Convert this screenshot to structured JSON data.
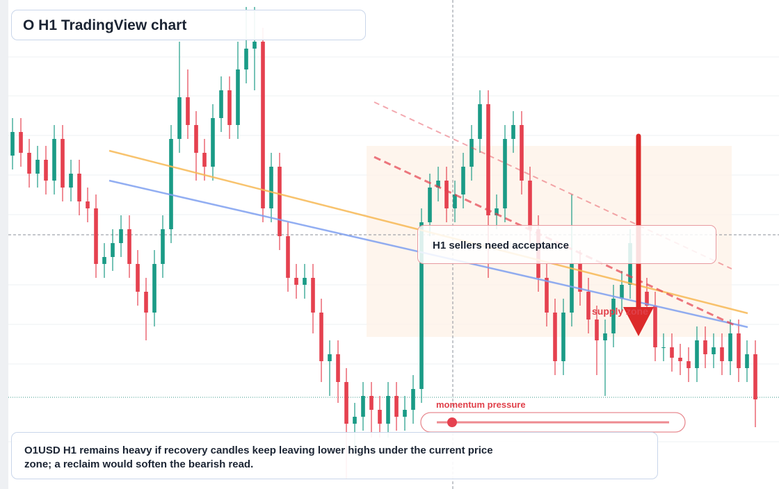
{
  "chart_data": {
    "type": "candlestick",
    "title": "O H1 TradingView chart",
    "annotations": [
      "H1 sellers need acceptance",
      "supply zone",
      "momentum pressure"
    ],
    "note": "O1USD H1 remains heavy if recovery candles keep leaving lower highs under the current price zone; a reclaim would soften the bearish read.",
    "up_color": "#1a9b86",
    "down_color": "#e5414f",
    "ylim": [
      0,
      70.4
    ],
    "categories": [
      null,
      null,
      null,
      null,
      null,
      null,
      null,
      null,
      null,
      null,
      null,
      null,
      null,
      null,
      null,
      null,
      null,
      null,
      null,
      null,
      null,
      null,
      null,
      null,
      null,
      null,
      null,
      null,
      null,
      null,
      null,
      null,
      null,
      null,
      null,
      null,
      null,
      null,
      null,
      null,
      null,
      null,
      null,
      null,
      null,
      null,
      null,
      null,
      null,
      null,
      null,
      null,
      null,
      null,
      null,
      null,
      null,
      null,
      null,
      null,
      null,
      null,
      null,
      null,
      null,
      null,
      null,
      null,
      null,
      null,
      null,
      null,
      null,
      null,
      null,
      null,
      null,
      null,
      null,
      null,
      null,
      null,
      null,
      null,
      null,
      null,
      null,
      null,
      null,
      null
    ],
    "open": [
      48.0,
      51.4,
      48.4,
      45.4,
      47.4,
      44.4,
      50.4,
      43.4,
      45.4,
      41.4,
      40.4,
      32.4,
      33.4,
      35.4,
      37.4,
      32.4,
      28.4,
      25.4,
      32.4,
      37.4,
      50.4,
      56.4,
      52.4,
      48.4,
      46.4,
      53.4,
      57.4,
      52.4,
      60.4,
      63.4,
      64.4,
      40.4,
      46.4,
      36.4,
      30.4,
      29.4,
      30.4,
      25.4,
      18.4,
      19.4,
      15.4,
      9.4,
      10.4,
      13.4,
      11.4,
      9.4,
      13.4,
      10.4,
      11.4,
      14.4,
      38.4,
      43.4,
      44.4,
      40.4,
      42.4,
      46.4,
      50.4,
      55.4,
      39.4,
      40.4,
      50.4,
      52.4,
      44.4,
      37.4,
      30.4,
      25.4,
      18.4,
      25.4,
      32.4,
      28.4,
      24.4,
      21.4,
      22.4,
      27.4,
      29.4,
      35.4,
      28.4,
      26.4,
      20.4,
      20.4,
      18.9,
      18.4,
      17.4,
      21.4,
      19.4,
      20.4,
      18.4,
      22.4,
      17.4,
      19.4
    ],
    "high": [
      53.4,
      53.4,
      50.4,
      49.4,
      49.4,
      52.4,
      52.4,
      47.4,
      47.4,
      43.4,
      42.4,
      35.4,
      37.4,
      39.4,
      39.4,
      34.4,
      30.4,
      34.4,
      39.4,
      52.4,
      64.4,
      60.4,
      54.4,
      50.4,
      55.4,
      59.4,
      59.4,
      64.4,
      69.4,
      69.4,
      66.4,
      48.4,
      48.4,
      38.4,
      32.4,
      32.4,
      32.4,
      27.4,
      21.4,
      21.4,
      17.4,
      12.4,
      15.4,
      15.4,
      13.4,
      15.4,
      15.4,
      13.4,
      16.4,
      40.4,
      45.4,
      46.4,
      46.4,
      44.4,
      48.4,
      52.4,
      57.4,
      57.4,
      42.4,
      52.4,
      54.4,
      54.4,
      46.4,
      39.4,
      32.4,
      27.4,
      27.4,
      42.4,
      34.4,
      30.4,
      26.4,
      24.4,
      29.4,
      31.4,
      37.4,
      37.4,
      30.4,
      28.4,
      22.4,
      22.4,
      20.9,
      20.4,
      23.4,
      23.4,
      22.4,
      22.4,
      24.4,
      24.4,
      21.4,
      21.4
    ],
    "low": [
      46.0,
      46.4,
      43.4,
      43.4,
      42.4,
      42.4,
      41.4,
      41.4,
      39.4,
      38.4,
      30.4,
      30.4,
      31.4,
      33.4,
      30.4,
      26.4,
      21.4,
      23.4,
      30.4,
      35.4,
      48.4,
      50.4,
      44.4,
      44.4,
      44.4,
      51.4,
      50.4,
      50.4,
      58.4,
      57.4,
      38.4,
      38.4,
      34.4,
      28.4,
      27.4,
      27.4,
      22.4,
      15.4,
      13.4,
      12.4,
      1.4,
      5.4,
      8.4,
      7.4,
      7.4,
      7.4,
      8.4,
      8.4,
      9.4,
      12.4,
      36.4,
      41.4,
      38.4,
      38.4,
      40.4,
      44.4,
      48.4,
      30.4,
      37.4,
      38.4,
      48.4,
      42.4,
      35.4,
      28.4,
      23.4,
      16.4,
      16.4,
      23.4,
      26.4,
      22.4,
      16.4,
      13.4,
      20.4,
      25.4,
      27.4,
      26.4,
      24.4,
      18.4,
      18.4,
      16.9,
      16.4,
      15.4,
      15.4,
      17.4,
      17.4,
      16.4,
      16.4,
      15.4,
      15.4,
      8.9
    ],
    "close": [
      51.4,
      48.4,
      45.4,
      47.4,
      44.4,
      50.4,
      43.4,
      45.4,
      41.4,
      40.4,
      32.4,
      33.4,
      35.4,
      37.4,
      32.4,
      28.4,
      25.4,
      32.4,
      37.4,
      50.4,
      56.4,
      52.4,
      48.4,
      46.4,
      53.4,
      57.4,
      52.4,
      60.4,
      63.4,
      64.4,
      40.4,
      46.4,
      36.4,
      30.4,
      29.4,
      30.4,
      25.4,
      18.4,
      19.4,
      15.4,
      9.4,
      10.4,
      13.4,
      11.4,
      9.4,
      13.4,
      10.4,
      11.4,
      14.4,
      38.4,
      43.4,
      44.4,
      40.4,
      42.4,
      46.4,
      50.4,
      55.4,
      39.4,
      40.4,
      50.4,
      52.4,
      44.4,
      37.4,
      30.4,
      25.4,
      18.4,
      25.4,
      32.4,
      28.4,
      24.4,
      21.4,
      22.4,
      27.4,
      29.4,
      35.4,
      28.4,
      26.4,
      20.4,
      20.4,
      18.9,
      18.4,
      17.4,
      21.4,
      19.4,
      20.4,
      18.4,
      22.4,
      17.4,
      19.4,
      12.9
    ]
  }
}
